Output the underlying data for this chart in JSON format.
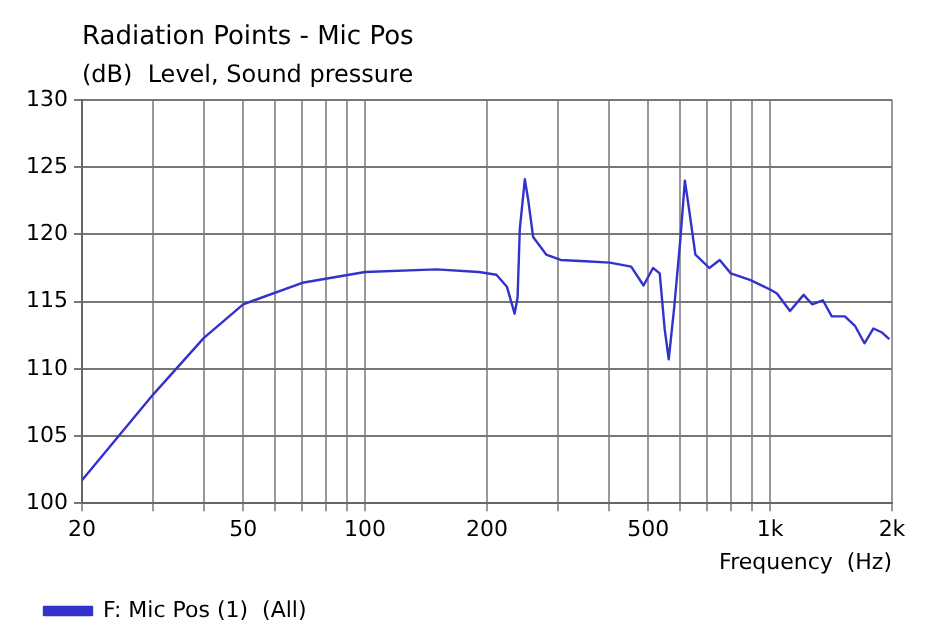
{
  "chart_data": {
    "type": "line",
    "title": "Radiation Points - Mic Pos",
    "ylabel": "(dB)  Level, Sound pressure",
    "xlabel": "Frequency  (Hz)",
    "log": "x",
    "grid": true,
    "legend": "bottom",
    "marker": "none",
    "line_style": "solid",
    "xlim": [
      20,
      2000
    ],
    "ylim": [
      100,
      130
    ],
    "xticks": [
      20,
      {
        "value": 30,
        "label": null
      },
      {
        "value": 40,
        "label": null
      },
      50,
      {
        "value": 60,
        "label": null
      },
      {
        "value": 70,
        "label": null
      },
      {
        "value": 80,
        "label": null
      },
      {
        "value": 90,
        "label": null
      },
      100,
      200,
      {
        "value": 300,
        "label": null
      },
      {
        "value": 400,
        "label": null
      },
      500,
      {
        "value": 600,
        "label": null
      },
      {
        "value": 700,
        "label": null
      },
      {
        "value": 800,
        "label": null
      },
      {
        "value": 900,
        "label": null
      },
      {
        "value": 1000,
        "label": "1k"
      },
      {
        "value": 2000,
        "label": "2k"
      }
    ],
    "yticks": [
      100,
      105,
      110,
      115,
      120,
      125,
      130
    ],
    "series": [
      {
        "name": "F: Mic Pos (1)  (All)",
        "color": "#3333cc",
        "x": [
          20,
          30,
          40,
          50,
          70,
          100,
          150,
          191,
          211,
          224,
          234,
          238,
          241,
          248,
          253,
          260,
          280,
          304,
          350,
          402,
          454,
          487,
          514,
          534,
          549,
          562,
          580,
          601,
          616,
          630,
          654,
          708,
          751,
          800,
          895,
          1000,
          1040,
          1120,
          1210,
          1270,
          1350,
          1420,
          1530,
          1620,
          1710,
          1800,
          1890,
          1970
        ],
        "values": [
          101.7,
          108.1,
          112.3,
          114.8,
          116.4,
          117.2,
          117.4,
          117.2,
          117.0,
          116.1,
          114.1,
          115.3,
          120.4,
          124.1,
          122.5,
          119.8,
          118.5,
          118.1,
          118.0,
          117.9,
          117.6,
          116.2,
          117.5,
          117.1,
          113.0,
          110.7,
          114.6,
          119.8,
          124.0,
          122.0,
          118.5,
          117.5,
          118.1,
          117.1,
          116.6,
          115.9,
          115.6,
          114.3,
          115.5,
          114.8,
          115.1,
          113.9,
          113.9,
          113.2,
          111.9,
          113.0,
          112.7,
          112.2
        ]
      }
    ]
  }
}
